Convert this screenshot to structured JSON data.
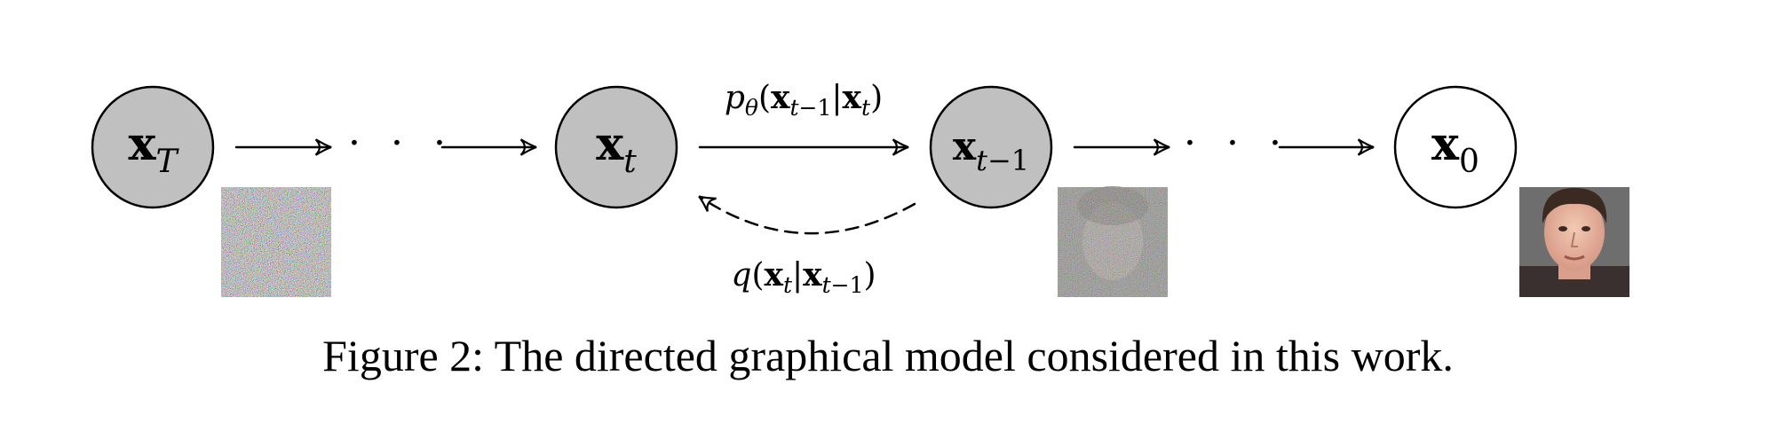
{
  "caption": "Figure 2: The directed graphical model considered in this work.",
  "nodes": [
    {
      "id": "xT",
      "var": "x",
      "sub": "T",
      "shaded": true
    },
    {
      "id": "xt",
      "var": "x",
      "sub": "t",
      "shaded": true
    },
    {
      "id": "xt-1",
      "var": "x",
      "sub": "t",
      "sub_extra": "−1",
      "shaded": true
    },
    {
      "id": "x0",
      "var": "x",
      "sub": "0",
      "shaded": false
    }
  ],
  "edges": {
    "forward": {
      "p": "p",
      "theta": "θ",
      "open": "(",
      "x1": "x",
      "s1": "t",
      "s1b": "−1",
      "bar": "|",
      "x2": "x",
      "s2": "t",
      "close": ")"
    },
    "reverse": {
      "q": "q",
      "open": "(",
      "x1": "x",
      "s1": "t",
      "bar": "|",
      "x2": "x",
      "s2": "t",
      "s2b": "−1",
      "close": ")"
    }
  },
  "ellipsis": "· · ·",
  "colors": {
    "shaded_fill": "#c0c0c0",
    "open_fill": "#ffffff"
  },
  "images": [
    "noise",
    "partially denoised face",
    "clean face"
  ]
}
